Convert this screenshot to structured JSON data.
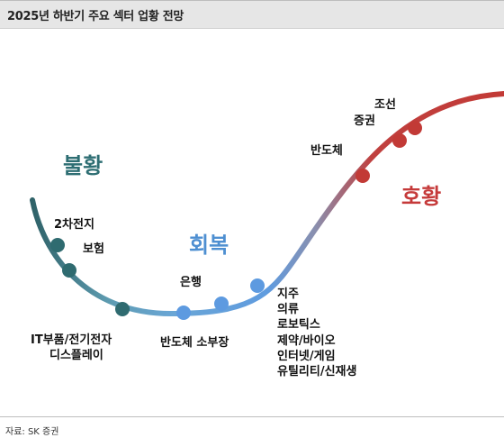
{
  "title": "2025년 하반기 주요 섹터 업황 전망",
  "source": "자료: SK 증권",
  "phases": {
    "recession": {
      "label": "불황",
      "color": "#2e6e73"
    },
    "recovery": {
      "label": "회복",
      "color": "#4e8fd1"
    },
    "boom": {
      "label": "호황",
      "color": "#c53a3a"
    }
  },
  "sectors": {
    "battery": "2차전지",
    "insurance": "보험",
    "it_parts": "IT부품/전기전자",
    "display": "디스플레이",
    "semi_parts": "반도체 소부장",
    "bank": "은행",
    "holding": "지주",
    "apparel": "의류",
    "robotics": "로보틱스",
    "pharma": "제약/바이오",
    "internet": "인터넷/게임",
    "utility": "유틸리티/신재생",
    "semiconductor": "반도체",
    "securities": "증권",
    "shipbuilding": "조선"
  }
}
